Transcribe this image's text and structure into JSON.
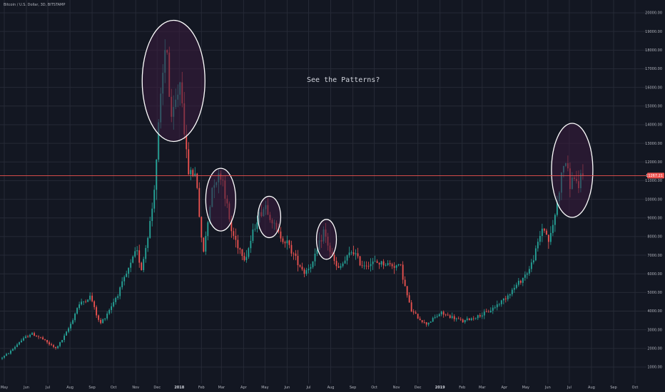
{
  "symbol": "Bitcoin / U.S. Dollar, 3D, BITSTAMP",
  "annotation": "See the Patterns?",
  "colors": {
    "background": "#131722",
    "grid": "#262a36",
    "up": "#26a69a",
    "down": "#ef5350",
    "price_line": "#ef5350",
    "highlight_fill": "#3a1c3e",
    "highlight_stroke": "#ffffff"
  },
  "chart_data": {
    "type": "candlestick",
    "grid": true,
    "last_price": 11267,
    "last_price_label": "11267.21",
    "ylim": [
      0,
      20000
    ],
    "y_ticks": [
      "1000.00",
      "2000.00",
      "3000.00",
      "4000.00",
      "5000.00",
      "6000.00",
      "7000.00",
      "8000.00",
      "9000.00",
      "10000.00",
      "11000.00",
      "12000.00",
      "13000.00",
      "14000.00",
      "15000.00",
      "16000.00",
      "17000.00",
      "18000.00",
      "19000.00",
      "20000.00"
    ],
    "x_ticks": [
      {
        "date": "2017-05-01",
        "label": "May"
      },
      {
        "date": "2017-06-01",
        "label": "Jun"
      },
      {
        "date": "2017-07-01",
        "label": "Jul"
      },
      {
        "date": "2017-08-01",
        "label": "Aug"
      },
      {
        "date": "2017-09-01",
        "label": "Sep"
      },
      {
        "date": "2017-10-01",
        "label": "Oct"
      },
      {
        "date": "2017-11-01",
        "label": "Nov"
      },
      {
        "date": "2017-12-01",
        "label": "Dec"
      },
      {
        "date": "2018-01-01",
        "label": "2018",
        "bold": true
      },
      {
        "date": "2018-02-01",
        "label": "Feb"
      },
      {
        "date": "2018-03-01",
        "label": "Mar"
      },
      {
        "date": "2018-04-01",
        "label": "Apr"
      },
      {
        "date": "2018-05-01",
        "label": "May"
      },
      {
        "date": "2018-06-01",
        "label": "Jun"
      },
      {
        "date": "2018-07-01",
        "label": "Jul"
      },
      {
        "date": "2018-08-01",
        "label": "Aug"
      },
      {
        "date": "2018-09-01",
        "label": "Sep"
      },
      {
        "date": "2018-10-01",
        "label": "Oct"
      },
      {
        "date": "2018-11-01",
        "label": "Nov"
      },
      {
        "date": "2018-12-01",
        "label": "Dec"
      },
      {
        "date": "2019-01-01",
        "label": "2019",
        "bold": true
      },
      {
        "date": "2019-02-01",
        "label": "Feb"
      },
      {
        "date": "2019-03-01",
        "label": "Mar"
      },
      {
        "date": "2019-04-01",
        "label": "Apr"
      },
      {
        "date": "2019-05-01",
        "label": "May"
      },
      {
        "date": "2019-06-01",
        "label": "Jun"
      },
      {
        "date": "2019-07-01",
        "label": "Jul"
      },
      {
        "date": "2019-08-01",
        "label": "Aug"
      },
      {
        "date": "2019-09-01",
        "label": "Sep"
      },
      {
        "date": "2019-10-01",
        "label": "Oct"
      }
    ],
    "price_path": [
      [
        "2017-04-28",
        1450
      ],
      [
        "2017-05-10",
        1750
      ],
      [
        "2017-05-25",
        2350
      ],
      [
        "2017-06-10",
        2800
      ],
      [
        "2017-06-25",
        2550
      ],
      [
        "2017-07-15",
        2000
      ],
      [
        "2017-07-28",
        2700
      ],
      [
        "2017-08-15",
        4300
      ],
      [
        "2017-09-02",
        4800
      ],
      [
        "2017-09-15",
        3300
      ],
      [
        "2017-10-01",
        4300
      ],
      [
        "2017-10-20",
        5800
      ],
      [
        "2017-11-05",
        7300
      ],
      [
        "2017-11-12",
        6300
      ],
      [
        "2017-11-28",
        9800
      ],
      [
        "2017-12-07",
        14500
      ],
      [
        "2017-12-17",
        19000
      ],
      [
        "2017-12-23",
        14000
      ],
      [
        "2018-01-06",
        16500
      ],
      [
        "2018-01-16",
        11500
      ],
      [
        "2018-01-28",
        11300
      ],
      [
        "2018-02-06",
        7000
      ],
      [
        "2018-02-20",
        11000
      ],
      [
        "2018-03-05",
        11300
      ],
      [
        "2018-03-18",
        8300
      ],
      [
        "2018-04-06",
        6800
      ],
      [
        "2018-04-22",
        8900
      ],
      [
        "2018-05-05",
        9700
      ],
      [
        "2018-05-20",
        8300
      ],
      [
        "2018-06-05",
        7600
      ],
      [
        "2018-06-28",
        6100
      ],
      [
        "2018-07-10",
        6600
      ],
      [
        "2018-07-25",
        8300
      ],
      [
        "2018-08-05",
        7000
      ],
      [
        "2018-08-14",
        6200
      ],
      [
        "2018-09-04",
        7300
      ],
      [
        "2018-09-15",
        6500
      ],
      [
        "2018-10-10",
        6600
      ],
      [
        "2018-11-10",
        6400
      ],
      [
        "2018-11-25",
        4000
      ],
      [
        "2018-12-15",
        3300
      ],
      [
        "2019-01-05",
        3900
      ],
      [
        "2019-02-05",
        3450
      ],
      [
        "2019-03-10",
        3900
      ],
      [
        "2019-04-02",
        4600
      ],
      [
        "2019-05-10",
        6300
      ],
      [
        "2019-05-28",
        8600
      ],
      [
        "2019-06-06",
        7700
      ],
      [
        "2019-06-24",
        11500
      ],
      [
        "2019-06-28",
        12200
      ],
      [
        "2019-07-05",
        10800
      ],
      [
        "2019-07-13",
        11400
      ],
      [
        "2019-07-16",
        10000
      ],
      [
        "2019-07-20",
        11267
      ]
    ]
  }
}
